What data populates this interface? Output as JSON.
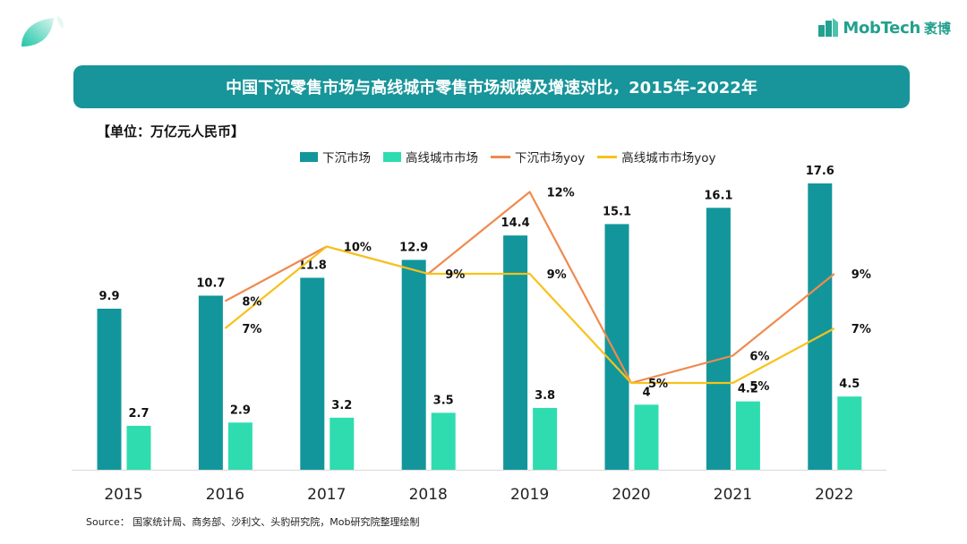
{
  "header": {
    "brand": "MobTech",
    "brand_cn": "袤博",
    "title": "中国下沉零售市场与高线城市零售市场规模及增速对比，2015年-2022年",
    "unit": "【单位：万亿元人民币】"
  },
  "colors": {
    "title_bar": "#17959a",
    "series_lower": "#12969b",
    "series_high": "#2fdcb0",
    "yoy_lower": "#ef8a4e",
    "yoy_high": "#f7c21a",
    "brand": "#23a08f"
  },
  "icons": {
    "logo": "leaf-logo-icon",
    "brand": "mobtech-logo-icon"
  },
  "source": "Source：  国家统计局、商务部、沙利文、头豹研究院，Mob研究院整理绘制",
  "chart_data": {
    "type": "bar",
    "categories": [
      "2015",
      "2016",
      "2017",
      "2018",
      "2019",
      "2020",
      "2021",
      "2022"
    ],
    "series": [
      {
        "name": "下沉市场",
        "type": "bar",
        "values": [
          9.9,
          10.7,
          11.8,
          12.9,
          14.4,
          15.1,
          16.1,
          17.6
        ]
      },
      {
        "name": "高线城市市场",
        "type": "bar",
        "values": [
          2.7,
          2.9,
          3.2,
          3.5,
          3.8,
          4,
          4.2,
          4.5
        ]
      },
      {
        "name": "下沉市场yoy",
        "type": "line",
        "values": [
          null,
          8,
          10,
          9,
          12,
          5,
          6,
          9
        ],
        "labels": [
          "",
          "8%",
          "10%",
          "9%",
          "12%",
          "5%",
          "6%",
          "9%"
        ]
      },
      {
        "name": "高线城市市场yoy",
        "type": "line",
        "values": [
          null,
          7,
          10,
          9,
          9,
          5,
          5,
          7
        ],
        "labels": [
          "",
          "7%",
          "",
          "",
          "9%",
          "",
          "5%",
          "7%"
        ]
      }
    ],
    "bar_labels_lower": [
      "9.9",
      "10.7",
      "11.8",
      "12.9",
      "14.4",
      "15.1",
      "16.1",
      "17.6"
    ],
    "bar_labels_high": [
      "2.7",
      "2.9",
      "3.2",
      "3.5",
      "3.8",
      "4",
      "4.2",
      "4.5"
    ]
  }
}
